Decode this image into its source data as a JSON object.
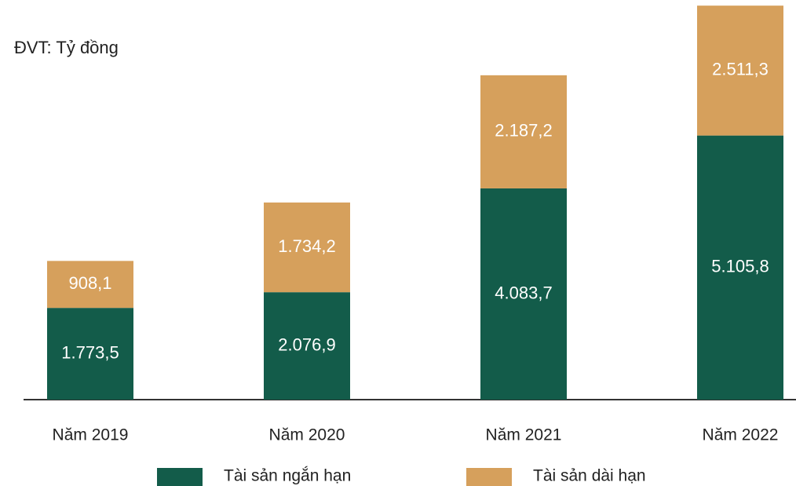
{
  "chart_data": {
    "type": "stacked_bar",
    "subtitle": "ĐVT: Tỷ đồng",
    "categories": [
      "Năm 2019",
      "Năm 2020",
      "Năm 2021",
      "Năm 2022"
    ],
    "series": [
      {
        "name": "Tài sản ngắn hạn",
        "color": "#135c4a",
        "values": [
          1773.5,
          2076.9,
          4083.7,
          5105.8
        ],
        "value_labels": [
          "1.773,5",
          "2.076,9",
          "4.083,7",
          "5.105,8"
        ]
      },
      {
        "name": "Tài sản dài hạn",
        "color": "#d6a05c",
        "values": [
          908.1,
          1734.2,
          2187.2,
          2511.3
        ],
        "value_labels": [
          "908,1",
          "1.734,2",
          "2.187,2",
          "2.511,3"
        ]
      }
    ],
    "ylim": [
      0,
      7650
    ],
    "legend": "bottom"
  }
}
